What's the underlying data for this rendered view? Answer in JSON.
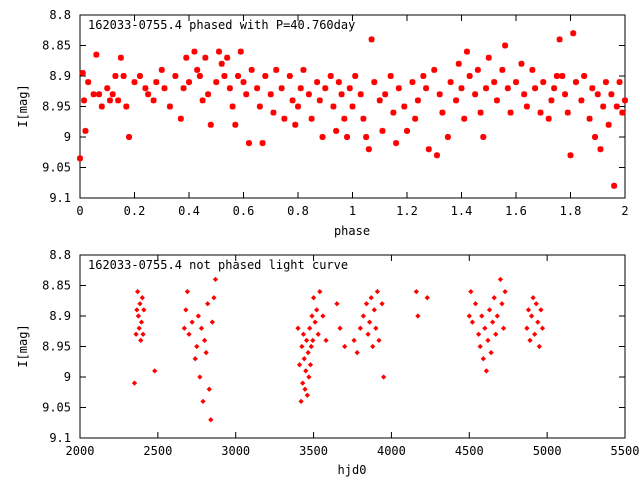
{
  "colors": {
    "marker": "#ff0000",
    "frame": "#000000",
    "background": "#ffffff"
  },
  "chart_data": [
    {
      "type": "scatter",
      "title": "162033-0755.4 phased with P=40.760day",
      "xlabel": "phase",
      "ylabel": "I[mag]",
      "xlim": [
        0,
        2
      ],
      "ylim": [
        8.8,
        9.1
      ],
      "y_inverted": true,
      "grid": false,
      "xticks": [
        0,
        0.2,
        0.4,
        0.6,
        0.8,
        1,
        1.2,
        1.4,
        1.6,
        1.8,
        2
      ],
      "xtick_labels": [
        "0",
        "0.2",
        "0.4",
        "0.6",
        "0.8",
        "1",
        "1.2",
        "1.4",
        "1.6",
        "1.8",
        "2"
      ],
      "yticks": [
        8.8,
        8.85,
        8.9,
        8.95,
        9,
        9.05,
        9.1
      ],
      "ytick_labels": [
        "8.8",
        "8.85",
        "8.9",
        "8.95",
        "9",
        "9.05",
        "9.1"
      ],
      "marker": "star",
      "points": [
        [
          0.0,
          9.035
        ],
        [
          0.01,
          8.895
        ],
        [
          0.015,
          8.94
        ],
        [
          0.02,
          8.99
        ],
        [
          0.03,
          8.91
        ],
        [
          0.05,
          8.93
        ],
        [
          0.06,
          8.865
        ],
        [
          0.07,
          8.93
        ],
        [
          0.08,
          8.95
        ],
        [
          0.1,
          8.92
        ],
        [
          0.11,
          8.94
        ],
        [
          0.12,
          8.93
        ],
        [
          0.13,
          8.9
        ],
        [
          0.14,
          8.94
        ],
        [
          0.15,
          8.87
        ],
        [
          0.16,
          8.9
        ],
        [
          0.17,
          8.95
        ],
        [
          0.18,
          9.0
        ],
        [
          0.2,
          8.91
        ],
        [
          0.22,
          8.9
        ],
        [
          0.24,
          8.92
        ],
        [
          0.25,
          8.93
        ],
        [
          0.27,
          8.94
        ],
        [
          0.28,
          8.91
        ],
        [
          0.3,
          8.89
        ],
        [
          0.31,
          8.92
        ],
        [
          0.33,
          8.95
        ],
        [
          0.35,
          8.9
        ],
        [
          0.37,
          8.97
        ],
        [
          0.38,
          8.92
        ],
        [
          0.39,
          8.87
        ],
        [
          0.4,
          8.91
        ],
        [
          0.42,
          8.86
        ],
        [
          0.43,
          8.89
        ],
        [
          0.44,
          8.9
        ],
        [
          0.45,
          8.94
        ],
        [
          0.46,
          8.87
        ],
        [
          0.47,
          8.93
        ],
        [
          0.48,
          8.98
        ],
        [
          0.5,
          8.91
        ],
        [
          0.51,
          8.86
        ],
        [
          0.52,
          8.88
        ],
        [
          0.53,
          8.9
        ],
        [
          0.54,
          8.87
        ],
        [
          0.55,
          8.92
        ],
        [
          0.56,
          8.95
        ],
        [
          0.57,
          8.98
        ],
        [
          0.58,
          8.9
        ],
        [
          0.59,
          8.86
        ],
        [
          0.6,
          8.91
        ],
        [
          0.61,
          8.93
        ],
        [
          0.62,
          9.01
        ],
        [
          0.63,
          8.89
        ],
        [
          0.65,
          8.92
        ],
        [
          0.66,
          8.95
        ],
        [
          0.67,
          9.01
        ],
        [
          0.68,
          8.9
        ],
        [
          0.7,
          8.93
        ],
        [
          0.71,
          8.96
        ],
        [
          0.72,
          8.89
        ],
        [
          0.74,
          8.92
        ],
        [
          0.75,
          8.97
        ],
        [
          0.77,
          8.9
        ],
        [
          0.78,
          8.94
        ],
        [
          0.79,
          8.98
        ],
        [
          0.8,
          8.95
        ],
        [
          0.81,
          8.92
        ],
        [
          0.82,
          8.89
        ],
        [
          0.84,
          8.93
        ],
        [
          0.85,
          8.97
        ],
        [
          0.87,
          8.91
        ],
        [
          0.88,
          8.94
        ],
        [
          0.89,
          9.0
        ],
        [
          0.9,
          8.92
        ],
        [
          0.92,
          8.9
        ],
        [
          0.93,
          8.95
        ],
        [
          0.94,
          8.99
        ],
        [
          0.95,
          8.91
        ],
        [
          0.96,
          8.93
        ],
        [
          0.97,
          8.97
        ],
        [
          0.98,
          9.0
        ],
        [
          0.99,
          8.92
        ],
        [
          1.0,
          8.95
        ],
        [
          1.01,
          8.9
        ],
        [
          1.03,
          8.93
        ],
        [
          1.04,
          8.97
        ],
        [
          1.05,
          9.0
        ],
        [
          1.06,
          9.02
        ],
        [
          1.07,
          8.84
        ],
        [
          1.08,
          8.91
        ],
        [
          1.1,
          8.94
        ],
        [
          1.11,
          8.99
        ],
        [
          1.12,
          8.93
        ],
        [
          1.14,
          8.9
        ],
        [
          1.15,
          8.96
        ],
        [
          1.16,
          9.01
        ],
        [
          1.17,
          8.92
        ],
        [
          1.19,
          8.95
        ],
        [
          1.2,
          8.99
        ],
        [
          1.22,
          8.91
        ],
        [
          1.23,
          8.97
        ],
        [
          1.24,
          8.94
        ],
        [
          1.26,
          8.9
        ],
        [
          1.27,
          8.92
        ],
        [
          1.28,
          9.02
        ],
        [
          1.3,
          8.89
        ],
        [
          1.31,
          9.03
        ],
        [
          1.32,
          8.93
        ],
        [
          1.33,
          8.96
        ],
        [
          1.35,
          9.0
        ],
        [
          1.36,
          8.91
        ],
        [
          1.38,
          8.94
        ],
        [
          1.39,
          8.88
        ],
        [
          1.4,
          8.92
        ],
        [
          1.41,
          8.97
        ],
        [
          1.42,
          8.86
        ],
        [
          1.43,
          8.9
        ],
        [
          1.45,
          8.93
        ],
        [
          1.46,
          8.89
        ],
        [
          1.47,
          8.96
        ],
        [
          1.48,
          9.0
        ],
        [
          1.49,
          8.92
        ],
        [
          1.5,
          8.87
        ],
        [
          1.52,
          8.91
        ],
        [
          1.53,
          8.94
        ],
        [
          1.55,
          8.89
        ],
        [
          1.56,
          8.85
        ],
        [
          1.57,
          8.92
        ],
        [
          1.58,
          8.96
        ],
        [
          1.6,
          8.91
        ],
        [
          1.62,
          8.88
        ],
        [
          1.63,
          8.93
        ],
        [
          1.64,
          8.95
        ],
        [
          1.66,
          8.89
        ],
        [
          1.67,
          8.92
        ],
        [
          1.69,
          8.96
        ],
        [
          1.7,
          8.91
        ],
        [
          1.72,
          8.97
        ],
        [
          1.73,
          8.94
        ],
        [
          1.74,
          8.92
        ],
        [
          1.75,
          8.9
        ],
        [
          1.76,
          8.84
        ],
        [
          1.77,
          8.9
        ],
        [
          1.78,
          8.93
        ],
        [
          1.79,
          8.96
        ],
        [
          1.8,
          9.03
        ],
        [
          1.81,
          8.83
        ],
        [
          1.82,
          8.91
        ],
        [
          1.84,
          8.94
        ],
        [
          1.85,
          8.9
        ],
        [
          1.87,
          8.97
        ],
        [
          1.88,
          8.92
        ],
        [
          1.89,
          9.0
        ],
        [
          1.9,
          8.93
        ],
        [
          1.91,
          9.02
        ],
        [
          1.92,
          8.95
        ],
        [
          1.93,
          8.91
        ],
        [
          1.94,
          8.98
        ],
        [
          1.95,
          8.93
        ],
        [
          1.96,
          9.08
        ],
        [
          1.97,
          8.95
        ],
        [
          1.98,
          8.91
        ],
        [
          1.99,
          8.96
        ],
        [
          2.0,
          8.94
        ]
      ]
    },
    {
      "type": "scatter",
      "title": "162033-0755.4 not phased light curve",
      "xlabel": "hjd0",
      "ylabel": "I[mag]",
      "xlim": [
        2000,
        5500
      ],
      "ylim": [
        8.8,
        9.1
      ],
      "y_inverted": true,
      "grid": false,
      "xticks": [
        2000,
        2500,
        3000,
        3500,
        4000,
        4500,
        5000,
        5500
      ],
      "xtick_labels": [
        "2000",
        "2500",
        "3000",
        "3500",
        "4000",
        "4500",
        "5000",
        "5500"
      ],
      "yticks": [
        8.8,
        8.85,
        8.9,
        8.95,
        9,
        9.05,
        9.1
      ],
      "ytick_labels": [
        "8.8",
        "8.85",
        "8.9",
        "8.95",
        "9",
        "9.05",
        "9.1"
      ],
      "marker": "diamond",
      "points": [
        [
          2350,
          9.01
        ],
        [
          2360,
          8.93
        ],
        [
          2365,
          8.89
        ],
        [
          2370,
          8.86
        ],
        [
          2375,
          8.9
        ],
        [
          2380,
          8.92
        ],
        [
          2385,
          8.88
        ],
        [
          2390,
          8.94
        ],
        [
          2395,
          8.91
        ],
        [
          2400,
          8.87
        ],
        [
          2405,
          8.93
        ],
        [
          2410,
          8.89
        ],
        [
          2480,
          8.99
        ],
        [
          2670,
          8.92
        ],
        [
          2680,
          8.89
        ],
        [
          2690,
          8.86
        ],
        [
          2700,
          8.93
        ],
        [
          2720,
          8.91
        ],
        [
          2740,
          8.97
        ],
        [
          2750,
          8.95
        ],
        [
          2760,
          8.9
        ],
        [
          2770,
          9.0
        ],
        [
          2780,
          8.92
        ],
        [
          2790,
          9.04
        ],
        [
          2800,
          8.94
        ],
        [
          2810,
          8.96
        ],
        [
          2820,
          8.88
        ],
        [
          2830,
          9.02
        ],
        [
          2840,
          9.07
        ],
        [
          2850,
          8.91
        ],
        [
          2860,
          8.87
        ],
        [
          2870,
          8.84
        ],
        [
          3400,
          8.92
        ],
        [
          3410,
          8.98
        ],
        [
          3420,
          9.04
        ],
        [
          3425,
          8.95
        ],
        [
          3430,
          9.01
        ],
        [
          3435,
          8.93
        ],
        [
          3440,
          8.97
        ],
        [
          3445,
          9.02
        ],
        [
          3450,
          8.99
        ],
        [
          3455,
          8.94
        ],
        [
          3460,
          9.03
        ],
        [
          3465,
          8.96
        ],
        [
          3470,
          9.0
        ],
        [
          3475,
          8.92
        ],
        [
          3480,
          8.98
        ],
        [
          3485,
          8.95
        ],
        [
          3490,
          8.9
        ],
        [
          3495,
          8.94
        ],
        [
          3500,
          8.87
        ],
        [
          3510,
          8.91
        ],
        [
          3520,
          8.89
        ],
        [
          3530,
          8.93
        ],
        [
          3540,
          8.86
        ],
        [
          3560,
          8.9
        ],
        [
          3580,
          8.94
        ],
        [
          3650,
          8.88
        ],
        [
          3670,
          8.92
        ],
        [
          3700,
          8.95
        ],
        [
          3760,
          8.94
        ],
        [
          3780,
          8.96
        ],
        [
          3800,
          8.92
        ],
        [
          3820,
          8.9
        ],
        [
          3840,
          8.88
        ],
        [
          3850,
          8.93
        ],
        [
          3860,
          8.91
        ],
        [
          3870,
          8.87
        ],
        [
          3880,
          8.95
        ],
        [
          3890,
          8.89
        ],
        [
          3900,
          8.92
        ],
        [
          3910,
          8.86
        ],
        [
          3920,
          8.94
        ],
        [
          3940,
          8.88
        ],
        [
          3950,
          9.0
        ],
        [
          4160,
          8.86
        ],
        [
          4170,
          8.9
        ],
        [
          4230,
          8.87
        ],
        [
          4500,
          8.9
        ],
        [
          4510,
          8.86
        ],
        [
          4520,
          8.91
        ],
        [
          4540,
          8.88
        ],
        [
          4560,
          8.93
        ],
        [
          4570,
          8.95
        ],
        [
          4580,
          8.9
        ],
        [
          4590,
          8.97
        ],
        [
          4600,
          8.92
        ],
        [
          4610,
          8.99
        ],
        [
          4620,
          8.94
        ],
        [
          4630,
          8.89
        ],
        [
          4640,
          8.96
        ],
        [
          4650,
          8.91
        ],
        [
          4660,
          8.87
        ],
        [
          4670,
          8.93
        ],
        [
          4680,
          8.9
        ],
        [
          4700,
          8.84
        ],
        [
          4710,
          8.88
        ],
        [
          4720,
          8.92
        ],
        [
          4730,
          8.86
        ],
        [
          4870,
          8.92
        ],
        [
          4880,
          8.89
        ],
        [
          4890,
          8.94
        ],
        [
          4900,
          8.9
        ],
        [
          4910,
          8.87
        ],
        [
          4920,
          8.93
        ],
        [
          4930,
          8.88
        ],
        [
          4940,
          8.91
        ],
        [
          4950,
          8.95
        ],
        [
          4960,
          8.89
        ],
        [
          4970,
          8.92
        ]
      ]
    }
  ]
}
